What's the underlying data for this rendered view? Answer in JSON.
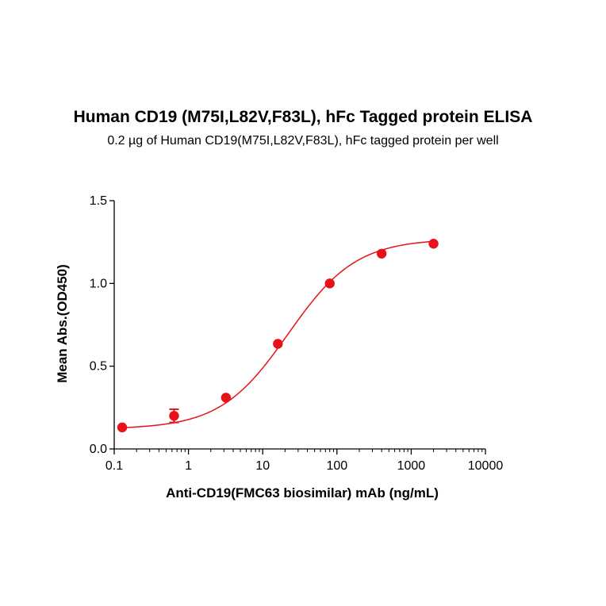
{
  "chart_data": {
    "type": "scatter",
    "title": "Human CD19 (M75I,L82V,F83L), hFc Tagged protein ELISA",
    "subtitle": "0.2 µg of Human CD19(M75I,L82V,F83L), hFc tagged protein per well",
    "xlabel": "Anti-CD19(FMC63 biosimilar) mAb (ng/mL)",
    "ylabel": "Mean Abs.(OD450)",
    "x_scale": "log",
    "xlim": [
      0.1,
      10000
    ],
    "ylim": [
      0,
      1.5
    ],
    "x_ticks": [
      0.1,
      1,
      10,
      100,
      1000,
      10000
    ],
    "x_tick_labels": [
      "0.1",
      "1",
      "10",
      "100",
      "1000",
      "10000"
    ],
    "y_ticks": [
      0.0,
      0.5,
      1.0,
      1.5
    ],
    "y_tick_labels": [
      "0.0",
      "0.5",
      "1.0",
      "1.5"
    ],
    "grid": false,
    "color": "#e8101a",
    "series": [
      {
        "x": [
          0.128,
          0.64,
          3.2,
          16,
          80,
          400,
          2000
        ],
        "y": [
          0.13,
          0.2,
          0.31,
          0.635,
          1.0,
          1.18,
          1.24
        ],
        "error": [
          0.005,
          0.04,
          0.008,
          0.01,
          0.01,
          0.005,
          0.005
        ]
      }
    ],
    "fit": {
      "model": "4PL",
      "bottom": 0.12,
      "top": 1.27,
      "ec50": 22,
      "hill": 0.95
    }
  }
}
